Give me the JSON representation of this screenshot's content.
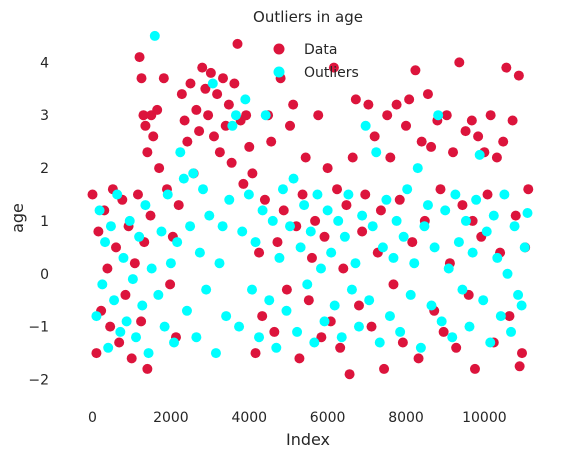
{
  "chart_data": {
    "type": "scatter",
    "title": "Outliers in age",
    "xlabel": "Index",
    "ylabel": "age",
    "xlim": [
      -600,
      11700
    ],
    "ylim": [
      -2.35,
      4.65
    ],
    "x_ticks": [
      0,
      2000,
      4000,
      6000,
      8000,
      10000
    ],
    "x_tick_labels": [
      "0",
      "2000",
      "4000",
      "6000",
      "8000",
      "10000"
    ],
    "y_ticks": [
      -2,
      -1,
      0,
      1,
      2,
      3,
      4
    ],
    "y_tick_labels": [
      "−2",
      "−1",
      "0",
      "1",
      "2",
      "3",
      "4"
    ],
    "grid": false,
    "legend_position": "top-center",
    "series": [
      {
        "name": "Data",
        "color": "#dc143c",
        "points": [
          [
            0,
            1.5
          ],
          [
            100,
            -1.5
          ],
          [
            150,
            0.8
          ],
          [
            220,
            -0.7
          ],
          [
            300,
            1.2
          ],
          [
            380,
            0.1
          ],
          [
            450,
            -1.0
          ],
          [
            520,
            1.6
          ],
          [
            600,
            0.5
          ],
          [
            680,
            -1.3
          ],
          [
            760,
            1.4
          ],
          [
            840,
            -0.4
          ],
          [
            920,
            0.9
          ],
          [
            1000,
            -1.6
          ],
          [
            1080,
            0.2
          ],
          [
            1160,
            1.5
          ],
          [
            1240,
            -0.9
          ],
          [
            1320,
            0.6
          ],
          [
            1400,
            -1.8
          ],
          [
            1480,
            1.1
          ],
          [
            1200,
            4.1
          ],
          [
            1250,
            3.7
          ],
          [
            1300,
            3.0
          ],
          [
            1350,
            2.8
          ],
          [
            1400,
            2.3
          ],
          [
            1500,
            3.0
          ],
          [
            1550,
            2.6
          ],
          [
            1650,
            3.1
          ],
          [
            1700,
            2.0
          ],
          [
            1820,
            3.7
          ],
          [
            1900,
            1.6
          ],
          [
            1980,
            -0.2
          ],
          [
            2050,
            0.7
          ],
          [
            2130,
            -1.2
          ],
          [
            2200,
            1.3
          ],
          [
            2280,
            3.4
          ],
          [
            2350,
            2.9
          ],
          [
            2420,
            2.5
          ],
          [
            2500,
            3.6
          ],
          [
            2580,
            1.9
          ],
          [
            2650,
            3.1
          ],
          [
            2720,
            2.7
          ],
          [
            2800,
            3.9
          ],
          [
            2880,
            3.5
          ],
          [
            2950,
            3.0
          ],
          [
            3020,
            3.8
          ],
          [
            3100,
            2.6
          ],
          [
            3180,
            3.4
          ],
          [
            3250,
            2.3
          ],
          [
            3330,
            3.7
          ],
          [
            3400,
            2.8
          ],
          [
            3480,
            3.2
          ],
          [
            3550,
            2.1
          ],
          [
            3620,
            3.6
          ],
          [
            3700,
            4.35
          ],
          [
            3780,
            2.9
          ],
          [
            3850,
            1.7
          ],
          [
            3920,
            3.0
          ],
          [
            4000,
            2.4
          ],
          [
            4080,
            1.9
          ],
          [
            4160,
            -1.5
          ],
          [
            4250,
            0.4
          ],
          [
            4330,
            -0.8
          ],
          [
            4400,
            1.4
          ],
          [
            4480,
            3.0
          ],
          [
            4560,
            2.5
          ],
          [
            4640,
            -1.1
          ],
          [
            4720,
            0.6
          ],
          [
            4800,
            3.7
          ],
          [
            4880,
            1.2
          ],
          [
            4960,
            -0.3
          ],
          [
            5040,
            2.8
          ],
          [
            5120,
            3.2
          ],
          [
            5200,
            0.9
          ],
          [
            5280,
            -1.6
          ],
          [
            5360,
            1.5
          ],
          [
            5440,
            2.2
          ],
          [
            5520,
            -0.5
          ],
          [
            5600,
            0.3
          ],
          [
            5680,
            1.0
          ],
          [
            5760,
            3.0
          ],
          [
            5840,
            -1.2
          ],
          [
            5920,
            0.7
          ],
          [
            6000,
            2.0
          ],
          [
            6080,
            -0.9
          ],
          [
            6160,
            3.9
          ],
          [
            6240,
            1.6
          ],
          [
            6320,
            -1.4
          ],
          [
            6400,
            0.1
          ],
          [
            6480,
            1.3
          ],
          [
            6560,
            -1.9
          ],
          [
            6640,
            2.2
          ],
          [
            6720,
            3.3
          ],
          [
            6800,
            -0.6
          ],
          [
            6880,
            0.8
          ],
          [
            6960,
            1.5
          ],
          [
            7040,
            3.2
          ],
          [
            7120,
            -1.0
          ],
          [
            7200,
            2.6
          ],
          [
            7280,
            0.4
          ],
          [
            7360,
            1.2
          ],
          [
            7440,
            -1.8
          ],
          [
            7520,
            3.0
          ],
          [
            7600,
            2.2
          ],
          [
            7680,
            -0.2
          ],
          [
            7760,
            3.2
          ],
          [
            7840,
            1.4
          ],
          [
            7920,
            -1.3
          ],
          [
            8000,
            2.8
          ],
          [
            8080,
            3.3
          ],
          [
            8160,
            0.6
          ],
          [
            8240,
            3.85
          ],
          [
            8320,
            -1.6
          ],
          [
            8400,
            2.5
          ],
          [
            8480,
            1.0
          ],
          [
            8560,
            3.4
          ],
          [
            8640,
            2.4
          ],
          [
            8720,
            -0.7
          ],
          [
            8800,
            2.9
          ],
          [
            8880,
            1.6
          ],
          [
            8960,
            -1.1
          ],
          [
            9040,
            3.0
          ],
          [
            9120,
            0.2
          ],
          [
            9200,
            2.3
          ],
          [
            9280,
            -1.4
          ],
          [
            9360,
            4.0
          ],
          [
            9440,
            1.3
          ],
          [
            9520,
            2.7
          ],
          [
            9600,
            -0.4
          ],
          [
            9680,
            2.9
          ],
          [
            9760,
            -1.8
          ],
          [
            9840,
            2.6
          ],
          [
            9920,
            0.7
          ],
          [
            10000,
            2.3
          ],
          [
            10080,
            1.5
          ],
          [
            10160,
            3.0
          ],
          [
            10240,
            -1.3
          ],
          [
            10320,
            2.2
          ],
          [
            10400,
            0.4
          ],
          [
            10480,
            2.5
          ],
          [
            10560,
            3.9
          ],
          [
            10640,
            -0.8
          ],
          [
            10720,
            2.9
          ],
          [
            10800,
            1.1
          ],
          [
            10880,
            3.75
          ],
          [
            10960,
            -1.5
          ],
          [
            11040,
            0.5
          ],
          [
            11120,
            1.6
          ],
          [
            10900,
            -1.75
          ],
          [
            9700,
            1.0
          ]
        ]
      },
      {
        "name": "Outliers",
        "color": "#00ffff",
        "points": [
          [
            100,
            -0.8
          ],
          [
            180,
            1.2
          ],
          [
            250,
            -0.2
          ],
          [
            320,
            0.6
          ],
          [
            400,
            -1.4
          ],
          [
            470,
            0.9
          ],
          [
            550,
            -0.5
          ],
          [
            630,
            1.5
          ],
          [
            710,
            -1.1
          ],
          [
            790,
            0.3
          ],
          [
            870,
            -0.9
          ],
          [
            950,
            1.0
          ],
          [
            1030,
            -0.1
          ],
          [
            1110,
            -1.2
          ],
          [
            1190,
            0.7
          ],
          [
            1270,
            -0.6
          ],
          [
            1350,
            1.3
          ],
          [
            1430,
            -1.5
          ],
          [
            1510,
            0.1
          ],
          [
            1590,
            4.5
          ],
          [
            1680,
            -0.4
          ],
          [
            1760,
            0.8
          ],
          [
            1840,
            -1.0
          ],
          [
            1920,
            1.5
          ],
          [
            2000,
            0.2
          ],
          [
            2080,
            -1.3
          ],
          [
            2160,
            0.6
          ],
          [
            2240,
            2.3
          ],
          [
            2330,
            1.8
          ],
          [
            2410,
            -0.7
          ],
          [
            2490,
            0.9
          ],
          [
            2570,
            1.9
          ],
          [
            2650,
            -1.2
          ],
          [
            2740,
            0.4
          ],
          [
            2820,
            1.6
          ],
          [
            2900,
            -0.3
          ],
          [
            2980,
            1.1
          ],
          [
            3070,
            3.6
          ],
          [
            3150,
            -1.5
          ],
          [
            3240,
            0.2
          ],
          [
            3320,
            0.9
          ],
          [
            3410,
            -0.8
          ],
          [
            3490,
            1.4
          ],
          [
            3570,
            2.8
          ],
          [
            3660,
            3.0
          ],
          [
            3740,
            -1.0
          ],
          [
            3820,
            0.8
          ],
          [
            3900,
            3.3
          ],
          [
            3990,
            1.5
          ],
          [
            4070,
            -0.3
          ],
          [
            4160,
            0.6
          ],
          [
            4250,
            -1.2
          ],
          [
            4340,
            1.2
          ],
          [
            4420,
            3.0
          ],
          [
            4510,
            -0.5
          ],
          [
            4600,
            1.0
          ],
          [
            4690,
            -1.4
          ],
          [
            4770,
            0.3
          ],
          [
            4860,
            1.6
          ],
          [
            4950,
            -0.7
          ],
          [
            5040,
            0.9
          ],
          [
            5130,
            1.8
          ],
          [
            5220,
            -1.1
          ],
          [
            5310,
            0.5
          ],
          [
            5400,
            1.3
          ],
          [
            5480,
            -0.2
          ],
          [
            5570,
            0.8
          ],
          [
            5660,
            -1.3
          ],
          [
            5740,
            1.5
          ],
          [
            5830,
            0.1
          ],
          [
            5920,
            -0.9
          ],
          [
            6000,
            1.2
          ],
          [
            6090,
            0.4
          ],
          [
            6180,
            -0.6
          ],
          [
            6270,
            1.0
          ],
          [
            6360,
            -1.2
          ],
          [
            6440,
            0.7
          ],
          [
            6530,
            1.5
          ],
          [
            6620,
            -0.3
          ],
          [
            6710,
            0.2
          ],
          [
            6800,
            -1.0
          ],
          [
            6880,
            1.1
          ],
          [
            6970,
            2.8
          ],
          [
            7060,
            -0.5
          ],
          [
            7150,
            0.9
          ],
          [
            7240,
            2.3
          ],
          [
            7330,
            -1.3
          ],
          [
            7410,
            0.5
          ],
          [
            7500,
            1.4
          ],
          [
            7590,
            -0.8
          ],
          [
            7680,
            0.3
          ],
          [
            7760,
            1.0
          ],
          [
            7850,
            -1.1
          ],
          [
            7940,
            0.7
          ],
          [
            8030,
            1.6
          ],
          [
            8120,
            -0.4
          ],
          [
            8210,
            0.2
          ],
          [
            8300,
            2.0
          ],
          [
            8380,
            -1.4
          ],
          [
            8470,
            0.9
          ],
          [
            8560,
            1.3
          ],
          [
            8650,
            -0.6
          ],
          [
            8730,
            0.5
          ],
          [
            8820,
            3.0
          ],
          [
            8910,
            -0.9
          ],
          [
            9000,
            1.2
          ],
          [
            9090,
            0.1
          ],
          [
            9180,
            -1.2
          ],
          [
            9260,
            1.5
          ],
          [
            9350,
            0.6
          ],
          [
            9440,
            -0.3
          ],
          [
            9530,
            1.0
          ],
          [
            9620,
            -1.0
          ],
          [
            9700,
            0.4
          ],
          [
            9790,
            1.4
          ],
          [
            9880,
            2.25
          ],
          [
            9970,
            -0.5
          ],
          [
            10060,
            0.8
          ],
          [
            10150,
            -1.3
          ],
          [
            10240,
            1.1
          ],
          [
            10330,
            0.3
          ],
          [
            10420,
            -0.8
          ],
          [
            10510,
            1.5
          ],
          [
            10590,
            0.0
          ],
          [
            10680,
            -1.1
          ],
          [
            10770,
            0.9
          ],
          [
            10860,
            -0.4
          ],
          [
            10950,
            -0.6
          ],
          [
            11030,
            0.5
          ],
          [
            11100,
            1.15
          ]
        ]
      }
    ]
  }
}
